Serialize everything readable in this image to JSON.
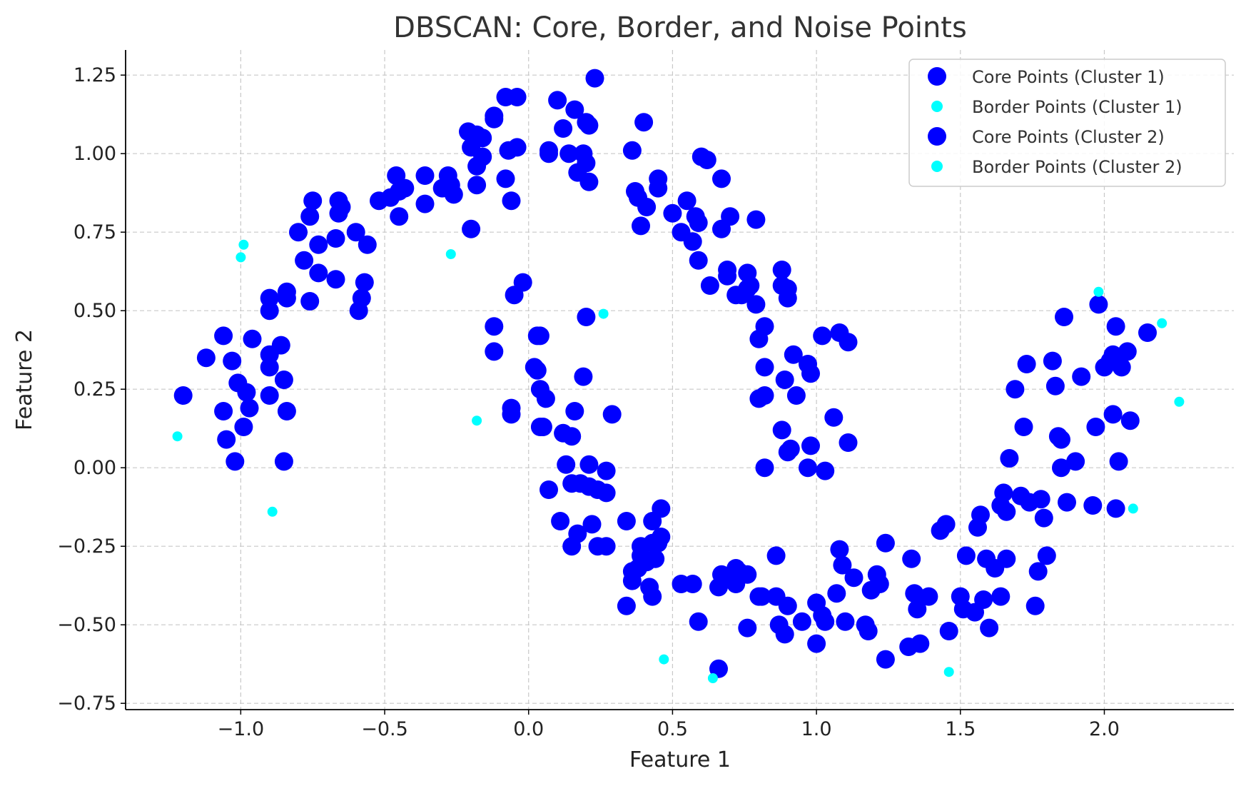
{
  "chart_data": {
    "type": "scatter",
    "title": "DBSCAN: Core, Border, and Noise Points",
    "xlabel": "Feature 1",
    "ylabel": "Feature 2",
    "xlim": [
      -1.4,
      2.45
    ],
    "ylim": [
      -0.77,
      1.33
    ],
    "grid": true,
    "legend_position": "top-right",
    "xticks": [
      {
        "value": -1.0,
        "label": "−1.0"
      },
      {
        "value": -0.5,
        "label": "−0.5"
      },
      {
        "value": 0.0,
        "label": "0.0"
      },
      {
        "value": 0.5,
        "label": "0.5"
      },
      {
        "value": 1.0,
        "label": "1.0"
      },
      {
        "value": 1.5,
        "label": "1.5"
      },
      {
        "value": 2.0,
        "label": "2.0"
      }
    ],
    "yticks": [
      {
        "value": -0.75,
        "label": "−0.75"
      },
      {
        "value": -0.5,
        "label": "−0.50"
      },
      {
        "value": -0.25,
        "label": "−0.25"
      },
      {
        "value": 0.0,
        "label": "0.00"
      },
      {
        "value": 0.25,
        "label": "0.25"
      },
      {
        "value": 0.5,
        "label": "0.50"
      },
      {
        "value": 0.75,
        "label": "0.75"
      },
      {
        "value": 1.0,
        "label": "1.00"
      },
      {
        "value": 1.25,
        "label": "1.25"
      }
    ],
    "series": [
      {
        "name": "Core Points (Cluster 1)",
        "color": "#0000ff",
        "marker": "large",
        "points": [
          [
            -1.2,
            0.23
          ],
          [
            -1.12,
            0.35
          ],
          [
            -1.06,
            0.42
          ],
          [
            -1.05,
            0.09
          ],
          [
            -1.02,
            0.02
          ],
          [
            -1.06,
            0.18
          ],
          [
            -1.03,
            0.34
          ],
          [
            -1.01,
            0.27
          ],
          [
            -0.99,
            0.13
          ],
          [
            -0.98,
            0.24
          ],
          [
            -0.97,
            0.19
          ],
          [
            -0.96,
            0.41
          ],
          [
            -0.9,
            0.5
          ],
          [
            -0.9,
            0.54
          ],
          [
            -0.9,
            0.32
          ],
          [
            -0.9,
            0.36
          ],
          [
            -0.9,
            0.23
          ],
          [
            -0.86,
            0.39
          ],
          [
            -0.85,
            0.02
          ],
          [
            -0.85,
            0.28
          ],
          [
            -0.84,
            0.18
          ],
          [
            -0.84,
            0.54
          ],
          [
            -0.84,
            0.56
          ],
          [
            -0.8,
            0.75
          ],
          [
            -0.78,
            0.66
          ],
          [
            -0.76,
            0.53
          ],
          [
            -0.76,
            0.8
          ],
          [
            -0.75,
            0.85
          ],
          [
            -0.73,
            0.62
          ],
          [
            -0.73,
            0.71
          ],
          [
            -0.67,
            0.6
          ],
          [
            -0.67,
            0.73
          ],
          [
            -0.66,
            0.85
          ],
          [
            -0.66,
            0.81
          ],
          [
            -0.65,
            0.83
          ],
          [
            -0.6,
            0.75
          ],
          [
            -0.59,
            0.5
          ],
          [
            -0.58,
            0.54
          ],
          [
            -0.57,
            0.59
          ],
          [
            -0.56,
            0.71
          ],
          [
            -0.52,
            0.85
          ],
          [
            -0.48,
            0.86
          ],
          [
            -0.46,
            0.93
          ],
          [
            -0.45,
            0.88
          ],
          [
            -0.45,
            0.8
          ],
          [
            -0.43,
            0.89
          ],
          [
            -0.36,
            0.93
          ],
          [
            -0.36,
            0.84
          ],
          [
            -0.3,
            0.89
          ],
          [
            -0.28,
            0.93
          ],
          [
            -0.27,
            0.9
          ],
          [
            -0.26,
            0.87
          ],
          [
            -0.21,
            1.07
          ],
          [
            -0.2,
            1.02
          ],
          [
            -0.2,
            0.76
          ],
          [
            -0.18,
            1.06
          ],
          [
            -0.18,
            0.96
          ],
          [
            -0.18,
            0.9
          ],
          [
            -0.16,
            0.99
          ],
          [
            -0.16,
            1.05
          ],
          [
            -0.12,
            1.11
          ],
          [
            -0.12,
            1.12
          ],
          [
            -0.08,
            1.18
          ],
          [
            -0.08,
            0.92
          ],
          [
            -0.07,
            1.01
          ],
          [
            -0.06,
            0.85
          ],
          [
            -0.04,
            1.02
          ],
          [
            -0.04,
            1.18
          ],
          [
            -0.05,
            0.55
          ],
          [
            -0.02,
            0.59
          ],
          [
            -0.12,
            0.45
          ],
          [
            -0.12,
            0.37
          ],
          [
            0.03,
            0.42
          ],
          [
            0.04,
            0.42
          ],
          [
            0.02,
            0.32
          ],
          [
            0.03,
            0.31
          ],
          [
            0.04,
            0.25
          ],
          [
            0.04,
            0.13
          ],
          [
            0.05,
            0.13
          ],
          [
            0.06,
            0.22
          ],
          [
            -0.06,
            0.17
          ],
          [
            -0.06,
            0.19
          ],
          [
            0.07,
            1.0
          ],
          [
            0.07,
            1.01
          ],
          [
            0.1,
            1.17
          ],
          [
            0.12,
            1.08
          ],
          [
            0.14,
            1.0
          ],
          [
            0.16,
            1.14
          ],
          [
            0.17,
            0.94
          ],
          [
            0.19,
            1.0
          ],
          [
            0.2,
            1.1
          ],
          [
            0.2,
            0.97
          ],
          [
            0.21,
            1.09
          ],
          [
            0.21,
            0.91
          ],
          [
            0.23,
            1.24
          ],
          [
            0.2,
            0.48
          ],
          [
            0.19,
            0.29
          ],
          [
            0.29,
            0.17
          ],
          [
            0.36,
            1.01
          ],
          [
            0.37,
            0.88
          ],
          [
            0.38,
            0.86
          ],
          [
            0.39,
            0.77
          ],
          [
            0.4,
            1.1
          ],
          [
            0.41,
            0.83
          ],
          [
            0.45,
            0.92
          ],
          [
            0.45,
            0.89
          ],
          [
            0.5,
            0.81
          ],
          [
            0.53,
            0.75
          ],
          [
            0.55,
            0.85
          ],
          [
            0.57,
            0.72
          ],
          [
            0.58,
            0.8
          ],
          [
            0.59,
            0.78
          ],
          [
            0.59,
            0.66
          ],
          [
            0.6,
            0.99
          ],
          [
            0.62,
            0.98
          ],
          [
            0.63,
            0.58
          ],
          [
            0.67,
            0.92
          ],
          [
            0.67,
            0.76
          ],
          [
            0.69,
            0.63
          ],
          [
            0.69,
            0.61
          ],
          [
            0.7,
            0.8
          ],
          [
            0.72,
            0.55
          ],
          [
            0.74,
            0.55
          ],
          [
            0.76,
            0.62
          ],
          [
            0.76,
            0.57
          ],
          [
            0.77,
            0.58
          ],
          [
            0.79,
            0.79
          ],
          [
            0.79,
            0.52
          ],
          [
            0.8,
            0.41
          ],
          [
            0.82,
            0.45
          ],
          [
            0.82,
            0.32
          ],
          [
            0.8,
            0.22
          ],
          [
            0.82,
            0.23
          ],
          [
            0.82,
            0.0
          ],
          [
            0.88,
            0.63
          ],
          [
            0.88,
            0.58
          ],
          [
            0.88,
            0.12
          ],
          [
            0.89,
            0.28
          ],
          [
            0.9,
            0.57
          ],
          [
            0.9,
            0.54
          ],
          [
            0.9,
            0.05
          ],
          [
            0.91,
            0.06
          ],
          [
            0.92,
            0.36
          ],
          [
            0.93,
            0.23
          ],
          [
            0.97,
            0.33
          ],
          [
            0.97,
            0.0
          ],
          [
            0.98,
            0.3
          ],
          [
            0.98,
            0.07
          ],
          [
            1.02,
            0.42
          ],
          [
            1.03,
            -0.01
          ],
          [
            1.06,
            0.16
          ],
          [
            1.08,
            0.43
          ],
          [
            1.11,
            0.4
          ],
          [
            1.11,
            0.08
          ]
        ]
      },
      {
        "name": "Border Points (Cluster 1)",
        "color": "#00ffff",
        "marker": "small",
        "points": [
          [
            -1.22,
            0.1
          ],
          [
            -1.0,
            0.67
          ],
          [
            -0.99,
            0.71
          ],
          [
            -0.89,
            -0.14
          ],
          [
            -0.27,
            0.68
          ],
          [
            -0.18,
            0.15
          ],
          [
            0.26,
            0.49
          ]
        ]
      },
      {
        "name": "Core Points (Cluster 2)",
        "color": "#0000ff",
        "marker": "large",
        "points": [
          [
            0.07,
            -0.07
          ],
          [
            0.12,
            0.11
          ],
          [
            0.13,
            0.01
          ],
          [
            0.15,
            -0.05
          ],
          [
            0.16,
            0.18
          ],
          [
            0.15,
            0.1
          ],
          [
            0.18,
            -0.05
          ],
          [
            0.21,
            -0.06
          ],
          [
            0.21,
            0.01
          ],
          [
            0.24,
            -0.07
          ],
          [
            0.27,
            -0.08
          ],
          [
            0.27,
            -0.01
          ],
          [
            0.11,
            -0.17
          ],
          [
            0.15,
            -0.25
          ],
          [
            0.17,
            -0.21
          ],
          [
            0.22,
            -0.18
          ],
          [
            0.24,
            -0.25
          ],
          [
            0.27,
            -0.25
          ],
          [
            0.34,
            -0.17
          ],
          [
            0.34,
            -0.44
          ],
          [
            0.36,
            -0.33
          ],
          [
            0.36,
            -0.36
          ],
          [
            0.38,
            -0.32
          ],
          [
            0.39,
            -0.25
          ],
          [
            0.39,
            -0.28
          ],
          [
            0.41,
            -0.3
          ],
          [
            0.42,
            -0.38
          ],
          [
            0.43,
            -0.41
          ],
          [
            0.43,
            -0.24
          ],
          [
            0.44,
            -0.29
          ],
          [
            0.45,
            -0.24
          ],
          [
            0.46,
            -0.13
          ],
          [
            0.46,
            -0.22
          ],
          [
            0.43,
            -0.17
          ],
          [
            0.53,
            -0.37
          ],
          [
            0.57,
            -0.37
          ],
          [
            0.59,
            -0.49
          ],
          [
            0.66,
            -0.64
          ],
          [
            0.66,
            -0.38
          ],
          [
            0.67,
            -0.34
          ],
          [
            0.7,
            -0.35
          ],
          [
            0.72,
            -0.37
          ],
          [
            0.72,
            -0.32
          ],
          [
            0.73,
            -0.33
          ],
          [
            0.76,
            -0.34
          ],
          [
            0.76,
            -0.51
          ],
          [
            0.8,
            -0.41
          ],
          [
            0.81,
            -0.41
          ],
          [
            0.86,
            -0.41
          ],
          [
            0.86,
            -0.28
          ],
          [
            0.87,
            -0.5
          ],
          [
            0.89,
            -0.53
          ],
          [
            0.9,
            -0.44
          ],
          [
            0.95,
            -0.49
          ],
          [
            1.0,
            -0.56
          ],
          [
            1.0,
            -0.43
          ],
          [
            1.02,
            -0.47
          ],
          [
            1.03,
            -0.49
          ],
          [
            1.07,
            -0.4
          ],
          [
            1.08,
            -0.26
          ],
          [
            1.09,
            -0.31
          ],
          [
            1.1,
            -0.49
          ],
          [
            1.13,
            -0.35
          ],
          [
            1.17,
            -0.5
          ],
          [
            1.18,
            -0.52
          ],
          [
            1.19,
            -0.39
          ],
          [
            1.21,
            -0.34
          ],
          [
            1.22,
            -0.37
          ],
          [
            1.24,
            -0.61
          ],
          [
            1.24,
            -0.24
          ],
          [
            1.32,
            -0.57
          ],
          [
            1.33,
            -0.29
          ],
          [
            1.34,
            -0.4
          ],
          [
            1.35,
            -0.45
          ],
          [
            1.36,
            -0.56
          ],
          [
            1.39,
            -0.41
          ],
          [
            1.43,
            -0.2
          ],
          [
            1.45,
            -0.18
          ],
          [
            1.46,
            -0.52
          ],
          [
            1.5,
            -0.41
          ],
          [
            1.51,
            -0.45
          ],
          [
            1.52,
            -0.28
          ],
          [
            1.55,
            -0.46
          ],
          [
            1.56,
            -0.19
          ],
          [
            1.57,
            -0.15
          ],
          [
            1.58,
            -0.42
          ],
          [
            1.59,
            -0.29
          ],
          [
            1.6,
            -0.51
          ],
          [
            1.62,
            -0.32
          ],
          [
            1.64,
            -0.41
          ],
          [
            1.64,
            -0.12
          ],
          [
            1.65,
            -0.08
          ],
          [
            1.66,
            -0.14
          ],
          [
            1.66,
            -0.29
          ],
          [
            1.67,
            0.03
          ],
          [
            1.69,
            0.25
          ],
          [
            1.71,
            -0.09
          ],
          [
            1.72,
            0.13
          ],
          [
            1.73,
            0.33
          ],
          [
            1.74,
            -0.11
          ],
          [
            1.76,
            -0.44
          ],
          [
            1.77,
            -0.33
          ],
          [
            1.78,
            -0.1
          ],
          [
            1.79,
            -0.16
          ],
          [
            1.8,
            -0.28
          ],
          [
            1.82,
            0.34
          ],
          [
            1.83,
            0.26
          ],
          [
            1.84,
            0.1
          ],
          [
            1.85,
            0.09
          ],
          [
            1.85,
            0.0
          ],
          [
            1.86,
            0.48
          ],
          [
            1.87,
            -0.11
          ],
          [
            1.9,
            0.02
          ],
          [
            1.92,
            0.29
          ],
          [
            1.96,
            -0.12
          ],
          [
            1.97,
            0.13
          ],
          [
            1.98,
            0.52
          ],
          [
            2.0,
            0.32
          ],
          [
            2.02,
            0.34
          ],
          [
            2.03,
            0.36
          ],
          [
            2.04,
            0.45
          ],
          [
            2.03,
            0.17
          ],
          [
            2.04,
            -0.13
          ],
          [
            2.05,
            0.02
          ],
          [
            2.06,
            0.32
          ],
          [
            2.08,
            0.37
          ],
          [
            2.09,
            0.15
          ],
          [
            2.15,
            0.43
          ]
        ]
      },
      {
        "name": "Border Points (Cluster 2)",
        "color": "#00ffff",
        "marker": "small",
        "points": [
          [
            0.47,
            -0.61
          ],
          [
            0.64,
            -0.67
          ],
          [
            1.46,
            -0.65
          ],
          [
            1.98,
            0.56
          ],
          [
            2.1,
            -0.13
          ],
          [
            2.2,
            0.46
          ],
          [
            2.26,
            0.21
          ]
        ]
      }
    ]
  }
}
